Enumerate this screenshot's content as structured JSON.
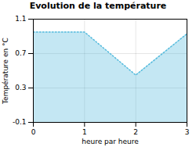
{
  "chart_data": {
    "type": "area",
    "title": "Evolution de la température",
    "xlabel": "heure par heure",
    "ylabel": "Température en °C",
    "x": [
      0,
      1,
      2,
      3
    ],
    "values": [
      0.95,
      0.95,
      0.45,
      0.93
    ],
    "xlim": [
      0,
      3
    ],
    "ylim": [
      -0.1,
      1.1
    ],
    "xticks": [
      0,
      1,
      2,
      3
    ],
    "yticks": [
      -0.1,
      0.3,
      0.7,
      1.1
    ],
    "color": "#55bbdd",
    "line_style": "dotted",
    "grid": true
  }
}
